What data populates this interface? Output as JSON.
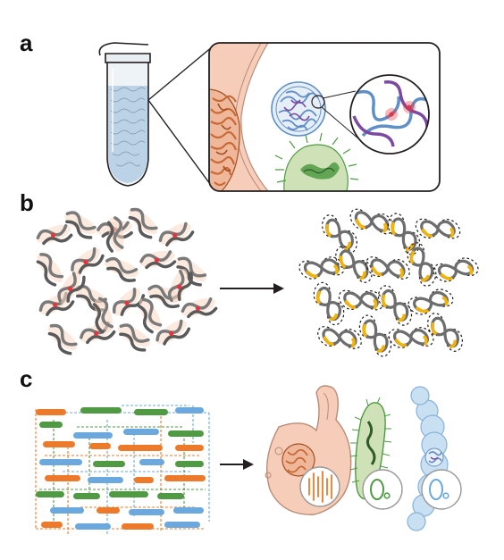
{
  "panels": {
    "a": {
      "label": "a"
    },
    "b": {
      "label": "b"
    },
    "c": {
      "label": "c"
    }
  },
  "colors": {
    "crosslink": "#e8323c",
    "chromatin_blue": "#5f8fc7",
    "chromatin_purple": "#7b4aa0",
    "bacterium_green": "#4f9a43",
    "bacterium_fill": "#cfe2b7",
    "cell_wall_pink": "#f6cdb8",
    "orange_dna": "#c86a37",
    "ligation_yellow": "#f2b40a",
    "contig_orange": "#ec7a2a",
    "contig_blue": "#6aa8dd",
    "contig_green": "#4f9a43",
    "tube_blue": "#a9c7e2",
    "outline": "#231f20"
  },
  "icons": {
    "tube": "microcentrifuge-tube-icon",
    "yeast": "yeast-cell-icon",
    "bacterium": "bacterium-icon",
    "filament": "filamentous-cell-icon",
    "linear_chromosomes": "linear-chromosomes-icon",
    "circular_chromosome": "circular-chromosome-icon",
    "arrow": "arrow-right-icon"
  }
}
